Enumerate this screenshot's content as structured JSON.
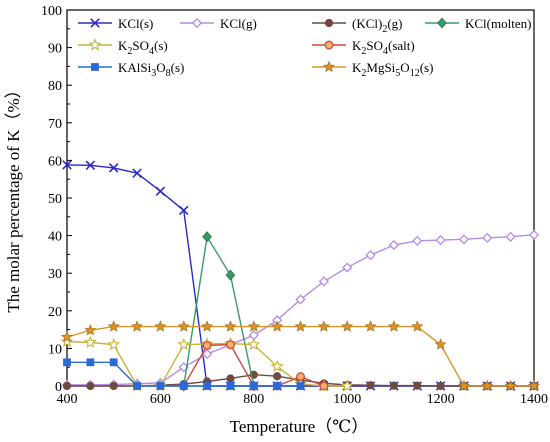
{
  "chart_data": {
    "type": "line",
    "title": "",
    "xlabel": "Temperature（℃）",
    "ylabel": "The molar percentage of K（%）",
    "xlim": [
      400,
      1400
    ],
    "ylim": [
      0,
      100
    ],
    "xticks": [
      400,
      600,
      800,
      1000,
      1200,
      1400
    ],
    "yticks": [
      0,
      10,
      20,
      30,
      40,
      50,
      60,
      70,
      80,
      90,
      100
    ],
    "grid": false,
    "legend_position": "top, inside plot, 4 columns",
    "series": [
      {
        "name": "KCl(s)",
        "name_main": "KCl(s)",
        "name_sub": "",
        "color": "#2b2bc8",
        "marker": "x",
        "x": [
          400,
          450,
          500,
          550,
          600,
          650,
          700,
          750,
          800,
          850,
          900,
          950,
          1000,
          1050,
          1100,
          1150,
          1200,
          1250,
          1300,
          1350,
          1400
        ],
        "y": [
          58.8,
          58.7,
          58.0,
          56.6,
          51.8,
          46.7,
          0,
          0,
          0,
          0,
          0,
          0,
          0,
          0,
          0,
          0,
          0,
          0,
          0,
          0,
          0
        ]
      },
      {
        "name": "KCl(g)",
        "name_main": "KCl(g)",
        "name_sub": "",
        "color": "#b58be8",
        "marker": "diamond-open",
        "x": [
          400,
          450,
          500,
          550,
          600,
          650,
          700,
          750,
          800,
          850,
          900,
          950,
          1000,
          1050,
          1100,
          1150,
          1200,
          1250,
          1300,
          1350,
          1400
        ],
        "y": [
          0.3,
          0.3,
          0.4,
          0.6,
          0.8,
          5.0,
          8.5,
          11.0,
          13.5,
          17.5,
          23.0,
          27.8,
          31.5,
          34.8,
          37.5,
          38.6,
          38.8,
          39.0,
          39.4,
          39.7,
          40.2
        ]
      },
      {
        "name": "(KCl)2(g)",
        "name_main": "(KCl)",
        "name_sub": "2",
        "name_tail": "(g)",
        "color": "#6e4a40",
        "marker": "circle",
        "x": [
          400,
          450,
          500,
          550,
          600,
          650,
          700,
          750,
          800,
          850,
          900,
          950,
          1000,
          1050,
          1100,
          1150,
          1200,
          1250,
          1300,
          1350,
          1400
        ],
        "y": [
          0,
          0,
          0,
          0,
          0.2,
          0.5,
          1.2,
          2.0,
          3.0,
          2.6,
          1.6,
          0.7,
          0.3,
          0.2,
          0.1,
          0.1,
          0,
          0,
          0,
          0,
          0
        ]
      },
      {
        "name": "KCl(molten)",
        "name_main": "KCl(molten)",
        "name_sub": "",
        "color": "#3a9a6a",
        "marker": "diamond",
        "x": [
          650,
          700,
          750,
          800
        ],
        "y": [
          0,
          39.7,
          29.5,
          0
        ]
      },
      {
        "name": "K2SO4(s)",
        "name_main": "K",
        "name_sub": "2",
        "name_tail": "SO",
        "name_sub2": "4",
        "name_tail2": "(s)",
        "color": "#c9b23a",
        "marker": "star-open",
        "x": [
          400,
          450,
          500,
          550,
          600,
          650,
          700,
          750,
          800,
          850,
          900,
          950,
          1000
        ],
        "y": [
          11.8,
          11.6,
          11.0,
          0,
          0,
          11.0,
          11.2,
          11.3,
          11.0,
          5.2,
          0.5,
          0,
          0
        ]
      },
      {
        "name": "K2SO4(salt)",
        "name_main": "K",
        "name_sub": "2",
        "name_tail": "SO",
        "name_sub2": "4",
        "name_tail2": "(salt)",
        "color": "#d04a3a",
        "marker": "circle-orange",
        "x": [
          650,
          700,
          750,
          800,
          850,
          900,
          950
        ],
        "y": [
          0,
          10.8,
          11.0,
          0,
          0,
          2.5,
          0
        ]
      },
      {
        "name": "KAlSi3O8(s)",
        "name_main": "KAlSi",
        "name_sub": "3",
        "name_tail": "O",
        "name_sub2": "8",
        "name_tail2": "(s)",
        "color": "#2a6ad8",
        "marker": "square",
        "x": [
          400,
          450,
          500,
          550,
          600,
          650,
          700,
          750,
          800,
          850,
          900
        ],
        "y": [
          6.3,
          6.3,
          6.3,
          0,
          0,
          0,
          0,
          0,
          0,
          0,
          0
        ]
      },
      {
        "name": "K2MgSi5O12(s)",
        "name_main": "K",
        "name_sub": "2",
        "name_tail": "MgSi",
        "name_sub2": "5",
        "name_tail2": "O",
        "name_sub3": "12",
        "name_tail3": "(s)",
        "color": "#d9952a",
        "marker": "star",
        "x": [
          400,
          450,
          500,
          550,
          600,
          650,
          700,
          750,
          800,
          850,
          900,
          950,
          1000,
          1050,
          1100,
          1150,
          1200,
          1250,
          1300,
          1350,
          1400
        ],
        "y": [
          13.0,
          14.8,
          15.8,
          15.8,
          15.8,
          15.8,
          15.8,
          15.8,
          15.8,
          15.8,
          15.8,
          15.8,
          15.8,
          15.8,
          15.8,
          15.8,
          11.0,
          0,
          0,
          0,
          0
        ]
      }
    ]
  }
}
